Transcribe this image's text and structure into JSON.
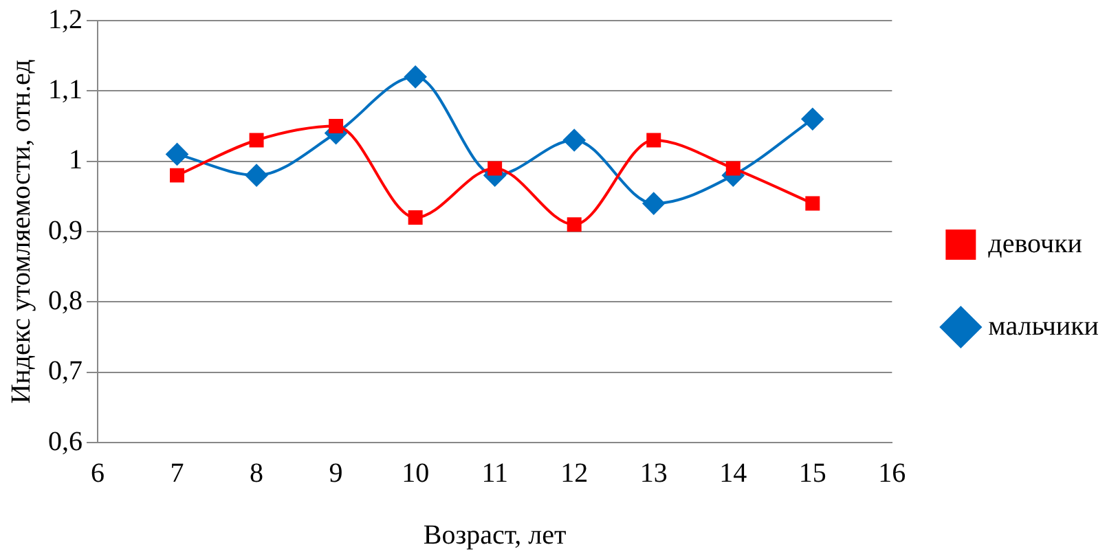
{
  "chart_data": {
    "type": "line",
    "xlabel": "Возраст, лет",
    "ylabel": "Индекс утомляемости, отн.ед",
    "x": [
      7,
      8,
      9,
      10,
      11,
      12,
      13,
      14,
      15
    ],
    "series": [
      {
        "name": "девочки",
        "color": "#ff0000",
        "marker": "square",
        "values": [
          0.98,
          1.03,
          1.05,
          0.92,
          0.99,
          0.91,
          1.03,
          0.99,
          0.94
        ]
      },
      {
        "name": "мальчики",
        "color": "#0070c0",
        "marker": "diamond",
        "values": [
          1.01,
          0.98,
          1.04,
          1.12,
          0.98,
          1.03,
          0.94,
          0.98,
          1.06
        ]
      }
    ],
    "xlim": [
      6,
      16
    ],
    "xticks": [
      6,
      7,
      8,
      9,
      10,
      11,
      12,
      13,
      14,
      15,
      16
    ],
    "ylim": [
      0.6,
      1.2
    ],
    "yticks": [
      {
        "value": 0.6,
        "label": "0,6"
      },
      {
        "value": 0.7,
        "label": "0,7"
      },
      {
        "value": 0.8,
        "label": "0,8"
      },
      {
        "value": 0.9,
        "label": "0,9"
      },
      1,
      {
        "value": 1.1,
        "label": "1,1"
      },
      {
        "value": 1.2,
        "label": "1,2"
      }
    ],
    "grid": "y",
    "legend": "right"
  }
}
